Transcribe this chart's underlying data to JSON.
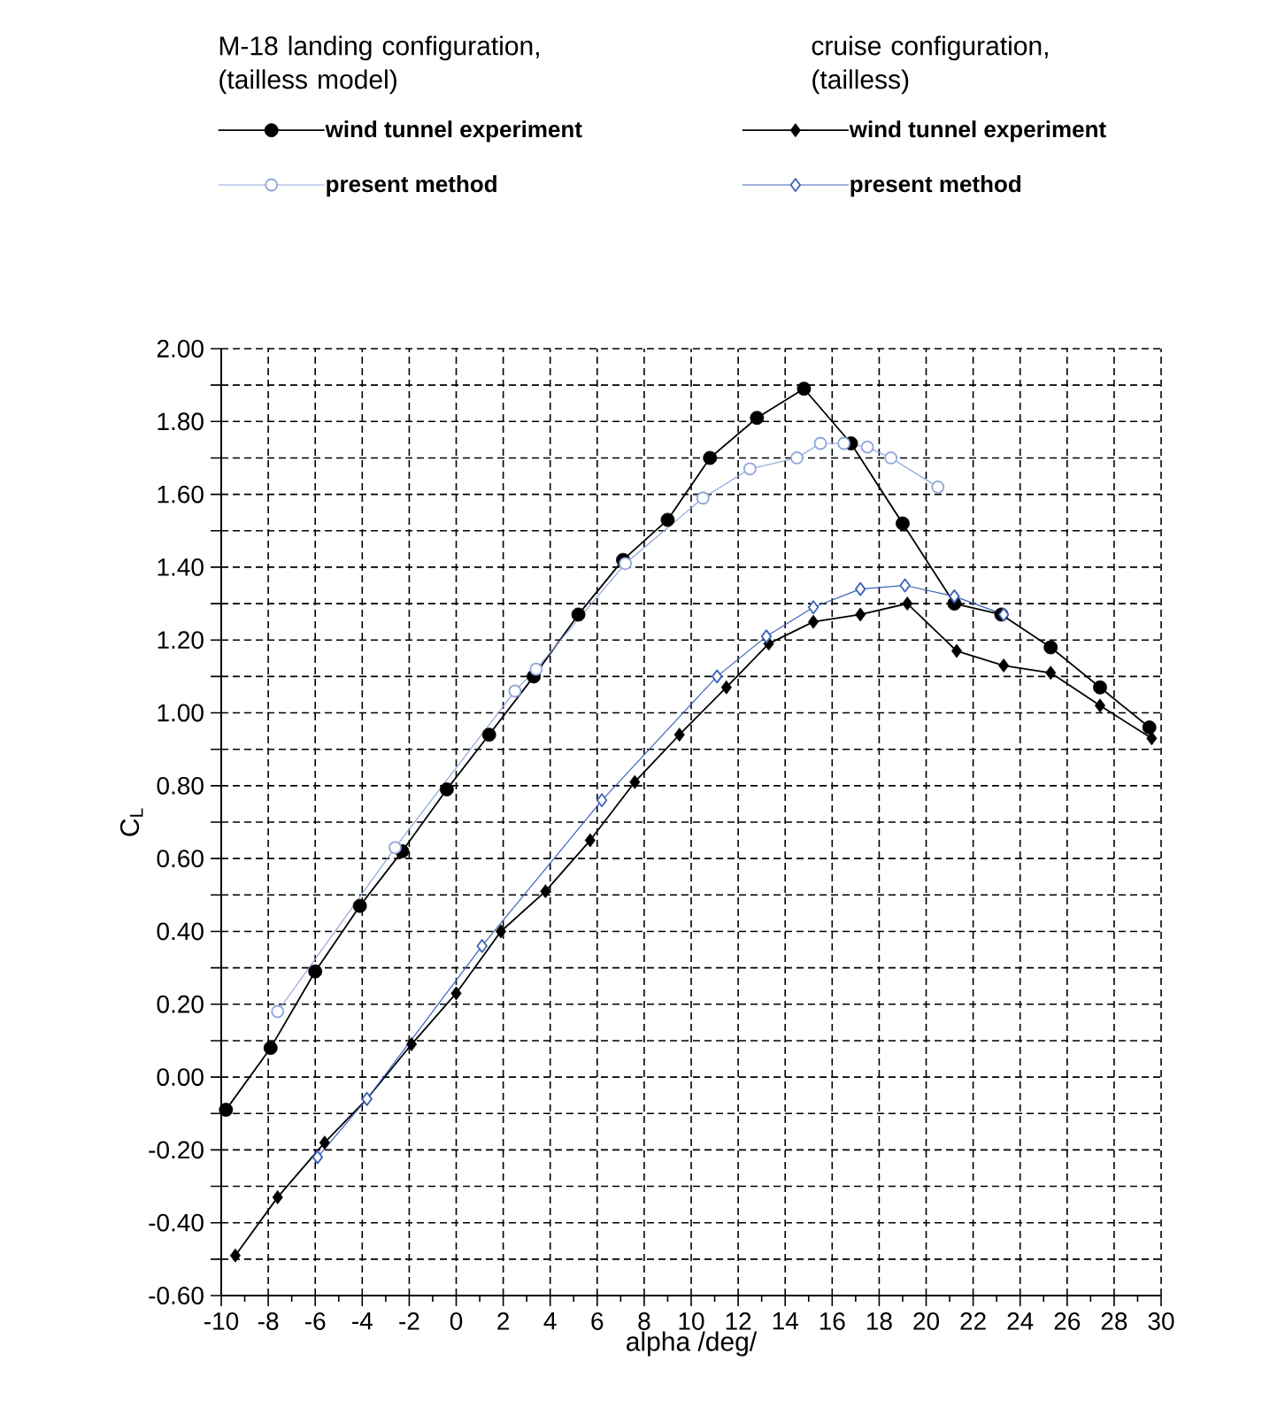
{
  "chart_data": {
    "type": "line",
    "xlabel": "alpha /deg/",
    "ylabel": "C$_{L}$",
    "annotations": [
      "M-18 landing configuration,\n(tailless model)",
      "cruise configuration,\n(tailless)"
    ],
    "legend": "top",
    "grid": true,
    "xlim": [
      -10,
      30
    ],
    "ylim": [
      -0.6,
      2.0
    ],
    "xticks": [
      -10,
      -8,
      -6,
      -4,
      -2,
      0,
      2,
      4,
      6,
      8,
      10,
      12,
      14,
      16,
      18,
      20,
      22,
      24,
      26,
      28,
      30
    ],
    "yticks": [
      {
        "value": -0.6,
        "label": "-0.60"
      },
      {
        "value": -0.5,
        "label": null
      },
      {
        "value": -0.4,
        "label": "-0.40"
      },
      {
        "value": -0.3,
        "label": null
      },
      {
        "value": -0.2,
        "label": "-0.20"
      },
      {
        "value": -0.1,
        "label": null
      },
      {
        "value": 0.0,
        "label": "0.00"
      },
      {
        "value": 0.1,
        "label": null
      },
      {
        "value": 0.2,
        "label": "0.20"
      },
      {
        "value": 0.3,
        "label": null
      },
      {
        "value": 0.4,
        "label": "0.40"
      },
      {
        "value": 0.5,
        "label": null
      },
      {
        "value": 0.6,
        "label": "0.60"
      },
      {
        "value": 0.7,
        "label": null
      },
      {
        "value": 0.8,
        "label": "0.80"
      },
      {
        "value": 0.9,
        "label": null
      },
      {
        "value": 1.0,
        "label": "1.00"
      },
      {
        "value": 1.1,
        "label": null
      },
      {
        "value": 1.2,
        "label": "1.20"
      },
      {
        "value": 1.3,
        "label": null
      },
      {
        "value": 1.4,
        "label": "1.40"
      },
      {
        "value": 1.5,
        "label": null
      },
      {
        "value": 1.6,
        "label": "1.60"
      },
      {
        "value": 1.7,
        "label": null
      },
      {
        "value": 1.8,
        "label": "1.80"
      },
      {
        "value": 1.9,
        "label": null
      },
      {
        "value": 2.0,
        "label": "2.00"
      }
    ],
    "series": [
      {
        "name": "wind tunnel experiment",
        "color": "#000000",
        "marker": "circle",
        "x": [
          -9.8,
          -7.9,
          -6.0,
          -4.1,
          -2.3,
          -0.4,
          1.4,
          3.3,
          5.2,
          7.1,
          9.0,
          10.8,
          12.8,
          14.8,
          16.8,
          19.0,
          21.2,
          23.2,
          25.3,
          27.4,
          29.5
        ],
        "values": [
          -0.09,
          0.08,
          0.29,
          0.47,
          0.62,
          0.79,
          0.94,
          1.1,
          1.27,
          1.42,
          1.53,
          1.7,
          1.81,
          1.89,
          1.74,
          1.52,
          1.3,
          1.27,
          1.18,
          1.07,
          0.96
        ]
      },
      {
        "name": "present method",
        "color": "#8fa5dc",
        "marker": "circle",
        "x": [
          -7.6,
          -2.6,
          2.5,
          3.4,
          7.2,
          10.5,
          12.5,
          14.5,
          15.5,
          16.5,
          17.5,
          18.5,
          20.5
        ],
        "values": [
          0.18,
          0.63,
          1.06,
          1.12,
          1.41,
          1.59,
          1.67,
          1.7,
          1.74,
          1.74,
          1.73,
          1.7,
          1.62
        ]
      },
      {
        "name": "wind tunnel experiment",
        "color": "#000000",
        "marker": "diamond",
        "x": [
          -9.4,
          -7.6,
          -5.6,
          -3.8,
          -1.9,
          0.0,
          1.9,
          3.8,
          5.7,
          7.6,
          9.5,
          11.5,
          13.3,
          15.2,
          17.2,
          19.2,
          21.3,
          23.3,
          25.3,
          27.4,
          29.6
        ],
        "values": [
          -0.49,
          -0.33,
          -0.18,
          -0.06,
          0.09,
          0.23,
          0.4,
          0.51,
          0.65,
          0.81,
          0.94,
          1.07,
          1.19,
          1.25,
          1.27,
          1.3,
          1.17,
          1.13,
          1.11,
          1.02,
          0.93
        ]
      },
      {
        "name": "present method",
        "color": "#3c63b8",
        "marker": "diamond",
        "x": [
          -5.9,
          -3.8,
          1.1,
          6.2,
          11.1,
          13.2,
          15.2,
          17.2,
          19.1,
          21.2,
          23.3
        ],
        "values": [
          -0.22,
          -0.06,
          0.36,
          0.76,
          1.1,
          1.21,
          1.29,
          1.34,
          1.35,
          1.32,
          1.27
        ]
      }
    ]
  }
}
